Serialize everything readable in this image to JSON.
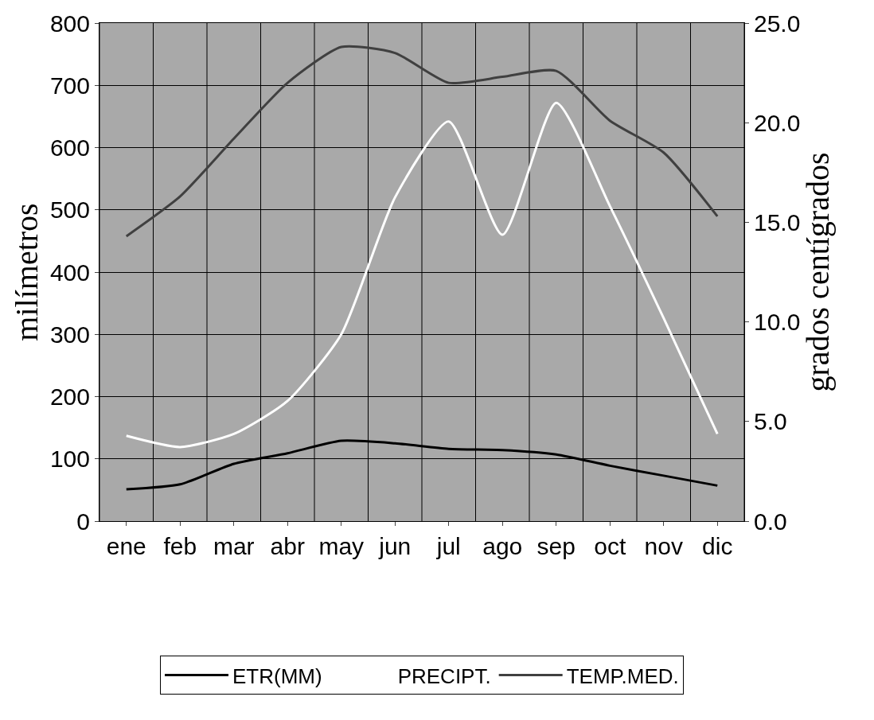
{
  "chart_data": {
    "type": "line",
    "categories": [
      "ene",
      "feb",
      "mar",
      "abr",
      "may",
      "jun",
      "jul",
      "ago",
      "sep",
      "oct",
      "nov",
      "dic"
    ],
    "series": [
      {
        "name": "ETR(MM)",
        "color": "#000000",
        "values": [
          51,
          59,
          92,
          109,
          129,
          125,
          116,
          114,
          107,
          89,
          73,
          57
        ]
      },
      {
        "name": "PRECIPT.",
        "color": "#ffffff",
        "values": [
          137,
          119,
          140,
          193,
          300,
          520,
          642,
          460,
          672,
          506,
          326,
          140
        ]
      },
      {
        "name": "TEMP.MED.",
        "color": "#404040",
        "axis": "y2",
        "values": [
          14.3,
          16.3,
          19.2,
          22.0,
          23.8,
          23.5,
          22.0,
          22.3,
          22.6,
          20.1,
          18.5,
          15.3
        ]
      }
    ],
    "ylabel": "milímetros",
    "y2label": "grados centígrados",
    "ylim": [
      0,
      800
    ],
    "yticks": [
      0,
      100,
      200,
      300,
      400,
      500,
      600,
      700,
      800
    ],
    "y2lim": [
      0,
      25
    ],
    "y2ticks": [
      {
        "value": 0,
        "label": "0.0"
      },
      {
        "value": 5,
        "label": "5.0"
      },
      {
        "value": 10,
        "label": "10.0"
      },
      {
        "value": 15,
        "label": "15.0"
      },
      {
        "value": 20,
        "label": "20.0"
      },
      {
        "value": 25,
        "label": "25.0"
      }
    ],
    "grid": true,
    "legend": "bottom",
    "line_style": "solid",
    "marker": "none"
  }
}
